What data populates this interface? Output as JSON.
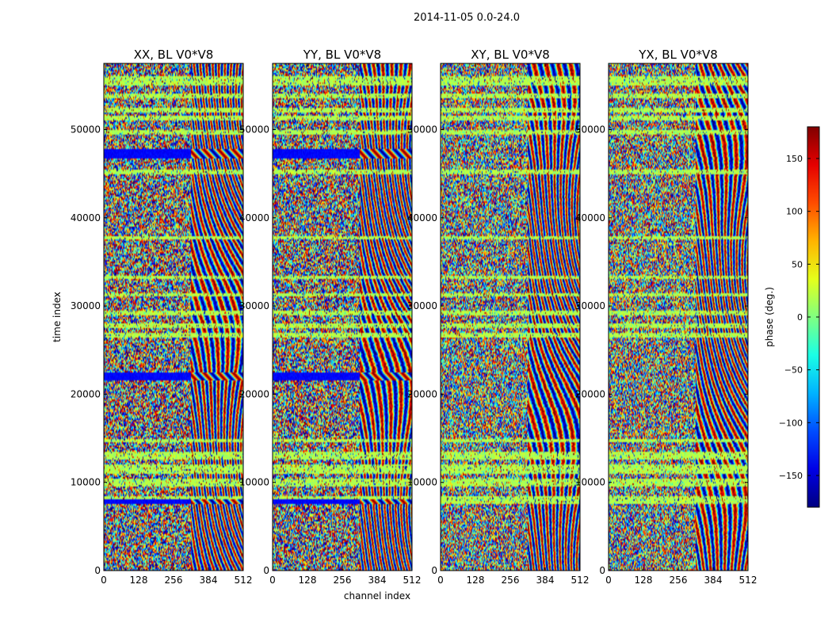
{
  "figure": {
    "suptitle": "2014-11-05 0.0-24.0",
    "xlabel": "channel index",
    "ylabel": "time index",
    "colorbar_label": "phase (deg.)"
  },
  "chart_data": {
    "type": "heatmap",
    "title": "2014-11-05 0.0-24.0",
    "xlabel": "channel index",
    "ylabel": "time index",
    "xlim": [
      0,
      512
    ],
    "ylim": [
      0,
      57500
    ],
    "x_ticks": [
      0,
      128,
      256,
      384,
      512
    ],
    "y_ticks": [
      0,
      10000,
      20000,
      30000,
      40000,
      50000
    ],
    "colorbar": {
      "label": "phase (deg.)",
      "range": [
        -180,
        180
      ],
      "ticks": [
        -150,
        -100,
        -50,
        0,
        50,
        100,
        150
      ],
      "colormap": "jet"
    },
    "panels": [
      {
        "title": "XX, BL V0*V8",
        "polarization": "XX",
        "baseline": "V0*V8"
      },
      {
        "title": "YY, BL V0*V8",
        "polarization": "YY",
        "baseline": "V0*V8"
      },
      {
        "title": "XY, BL V0*V8",
        "polarization": "XY",
        "baseline": "V0*V8"
      },
      {
        "title": "YX, BL V0*V8",
        "polarization": "YX",
        "baseline": "V0*V8"
      }
    ],
    "flagged_time_bands": [
      [
        7500,
        8500
      ],
      [
        9500,
        10500
      ],
      [
        11000,
        12000
      ],
      [
        12500,
        13500
      ],
      [
        14500,
        15000
      ],
      [
        26500,
        27000
      ],
      [
        27500,
        28000
      ],
      [
        29000,
        29500
      ],
      [
        31000,
        31500
      ],
      [
        33000,
        33500
      ],
      [
        37500,
        38000
      ],
      [
        45000,
        45500
      ],
      [
        49500,
        50000
      ],
      [
        51000,
        51500
      ],
      [
        52000,
        52500
      ],
      [
        53500,
        54000
      ],
      [
        55000,
        56000
      ]
    ],
    "saturated_time_bands": [
      {
        "range": [
          21500,
          22500
        ],
        "panels": [
          "XX",
          "YY"
        ]
      },
      {
        "range": [
          46800,
          47800
        ],
        "panels": [
          "XX",
          "YY"
        ]
      },
      {
        "range": [
          7600,
          8000
        ],
        "panels": [
          "XX",
          "YY"
        ]
      }
    ]
  }
}
